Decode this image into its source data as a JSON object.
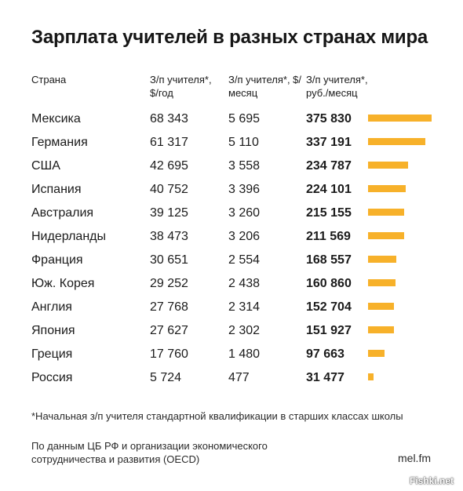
{
  "chart_data": {
    "type": "table",
    "title": "Зарплата учителей в разных странах мира",
    "columns": [
      "Страна",
      "З/п учителя*, $/год",
      "З/п учителя*, $/месяц",
      "З/п учителя*, руб./месяц"
    ],
    "rows": [
      {
        "country": "Мексика",
        "usd_year": "68 343",
        "usd_month": "5 695",
        "rub_month": "375 830",
        "value": 375830
      },
      {
        "country": "Германия",
        "usd_year": "61 317",
        "usd_month": "5 110",
        "rub_month": "337 191",
        "value": 337191
      },
      {
        "country": "США",
        "usd_year": "42 695",
        "usd_month": "3 558",
        "rub_month": "234 787",
        "value": 234787
      },
      {
        "country": "Испания",
        "usd_year": "40 752",
        "usd_month": "3 396",
        "rub_month": "224 101",
        "value": 224101
      },
      {
        "country": "Австралия",
        "usd_year": "39 125",
        "usd_month": "3 260",
        "rub_month": "215 155",
        "value": 215155
      },
      {
        "country": "Нидерланды",
        "usd_year": "38 473",
        "usd_month": "3 206",
        "rub_month": "211 569",
        "value": 211569
      },
      {
        "country": "Франция",
        "usd_year": "30 651",
        "usd_month": "2 554",
        "rub_month": "168 557",
        "value": 168557
      },
      {
        "country": "Юж. Корея",
        "usd_year": "29 252",
        "usd_month": "2 438",
        "rub_month": "160 860",
        "value": 160860
      },
      {
        "country": "Англия",
        "usd_year": "27 768",
        "usd_month": "2 314",
        "rub_month": "152 704",
        "value": 152704
      },
      {
        "country": "Япония",
        "usd_year": "27 627",
        "usd_month": "2 302",
        "rub_month": "151 927",
        "value": 151927
      },
      {
        "country": "Греция",
        "usd_year": "17 760",
        "usd_month": "1 480",
        "rub_month": "97 663",
        "value": 97663
      },
      {
        "country": "Россия",
        "usd_year": "5 724",
        "usd_month": "477",
        "rub_month": "31 477",
        "value": 31477
      }
    ],
    "bar_color": "#f7b12a",
    "footnote": "*Начальная з/п учителя стандартной квалификации в старших классах школы",
    "source": "По данным ЦБ РФ и организации экономического сотрудничества и развития (OECD)",
    "brand": "mel.fm"
  },
  "watermark": "Fishki.net"
}
